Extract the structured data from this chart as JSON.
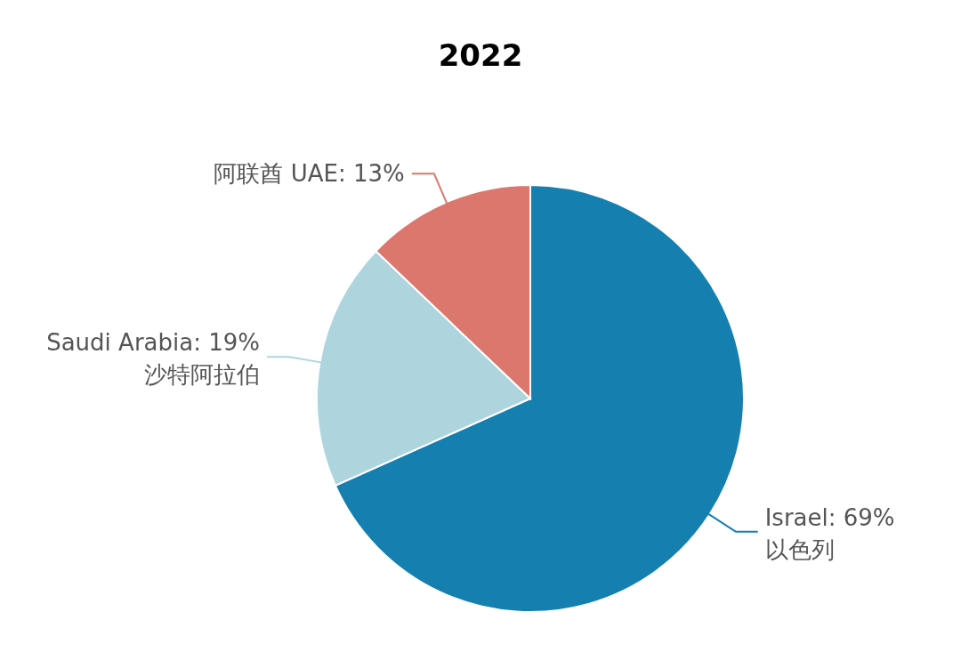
{
  "chart_data": {
    "type": "pie",
    "title": "2022",
    "categories": [
      "Israel\n以色列",
      "Saudi Arabia\n沙特阿拉伯",
      "阿联酋  UAE"
    ],
    "values": [
      69,
      19,
      13
    ],
    "value_labels": [
      ": 69%",
      ": 19%",
      ": 13%"
    ],
    "colors": [
      "#1580b0",
      "#aed5de",
      "#db776d"
    ]
  }
}
